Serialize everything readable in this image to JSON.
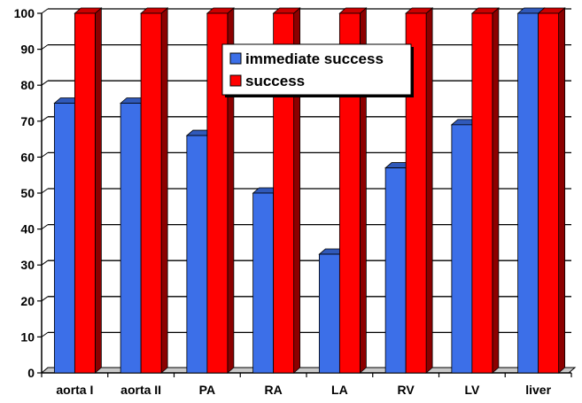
{
  "chart_data": {
    "type": "bar",
    "categories": [
      "aorta I",
      "aorta II",
      "PA",
      "RA",
      "LA",
      "RV",
      "LV",
      "liver"
    ],
    "series": [
      {
        "name": "immediate success",
        "color": "#3c6fe8",
        "values": [
          75,
          75,
          66,
          50,
          33,
          57,
          69,
          100
        ]
      },
      {
        "name": "success",
        "color": "#ff0000",
        "values": [
          100,
          100,
          100,
          100,
          100,
          100,
          100,
          100
        ]
      }
    ],
    "ylim": [
      0,
      100
    ],
    "yticks": [
      0,
      10,
      20,
      30,
      40,
      50,
      60,
      70,
      80,
      90,
      100
    ],
    "title": "",
    "xlabel": "",
    "ylabel": "",
    "grid": true,
    "legend_position": "top-center",
    "style": "3d"
  }
}
